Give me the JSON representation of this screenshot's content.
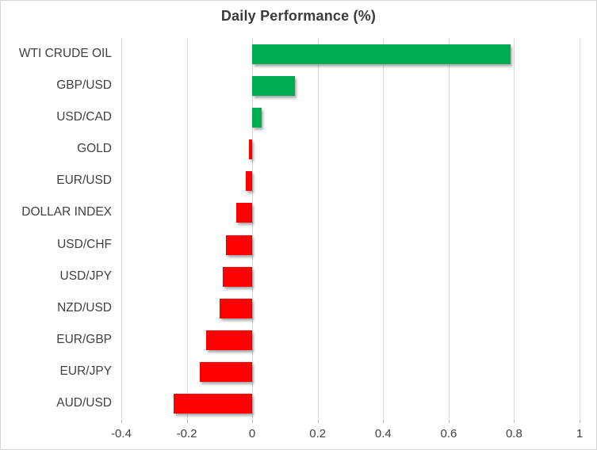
{
  "chart": {
    "title": "Daily Performance (%)"
  },
  "chart_data": {
    "type": "bar",
    "orientation": "horizontal",
    "title": "Daily Performance (%)",
    "categories": [
      "WTI CRUDE OIL",
      "GBP/USD",
      "USD/CAD",
      "GOLD",
      "EUR/USD",
      "DOLLAR INDEX",
      "USD/CHF",
      "USD/JPY",
      "NZD/USD",
      "EUR/GBP",
      "EUR/JPY",
      "AUD/USD"
    ],
    "values": [
      0.79,
      0.13,
      0.03,
      -0.01,
      -0.02,
      -0.05,
      -0.08,
      -0.09,
      -0.1,
      -0.14,
      -0.16,
      -0.24
    ],
    "xlabel": "",
    "ylabel": "",
    "xlim": [
      -0.4,
      1
    ],
    "x_ticks": [
      -0.4,
      -0.2,
      0,
      0.2,
      0.4,
      0.6,
      0.8,
      1
    ],
    "x_tick_labels": [
      "-0.4",
      "-0.2",
      "0",
      "0.2",
      "0.4",
      "0.6",
      "0.8",
      "1"
    ],
    "grid": true,
    "legend": false,
    "colors": {
      "positive": "#00AC50",
      "negative": "#FF0000",
      "gridline": "#D9D9D9",
      "text": "#404040",
      "title": "#3B3B3B",
      "border": "#D6D6D6"
    }
  }
}
